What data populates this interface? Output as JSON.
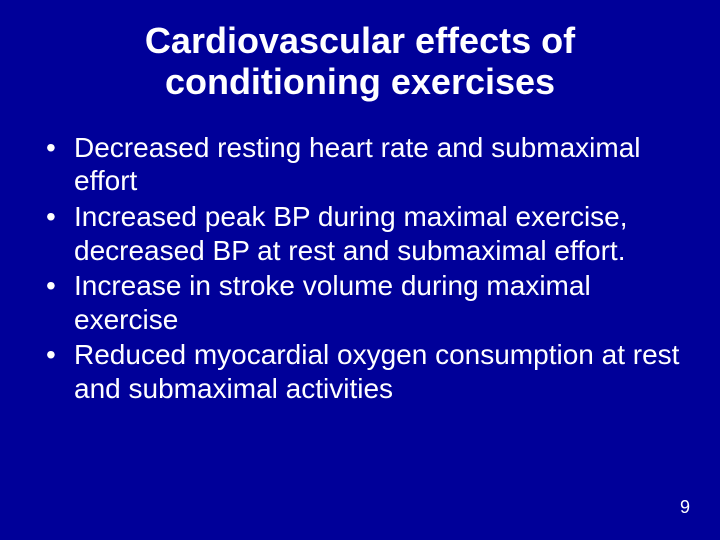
{
  "slide": {
    "background_color": "#000099",
    "text_color": "#ffffff",
    "title": "Cardiovascular effects of conditioning exercises",
    "title_fontsize": 36,
    "body_fontsize": 28,
    "bullets": [
      "Decreased resting heart rate and submaximal effort",
      "Increased peak BP during maximal exercise, decreased BP at rest and submaximal effort.",
      "Increase in stroke volume during maximal exercise",
      "Reduced myocardial oxygen consumption at rest and submaximal activities"
    ],
    "page_number": "9",
    "page_number_fontsize": 18
  }
}
